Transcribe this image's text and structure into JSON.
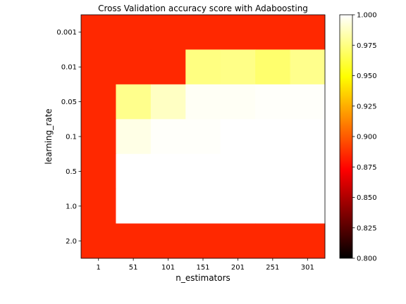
{
  "chart_data": {
    "type": "heatmap",
    "title": "Cross Validation accuracy score with Adaboosting",
    "xlabel": "n_estimators",
    "ylabel": "learning_rate",
    "x_categories": [
      "1",
      "51",
      "101",
      "151",
      "201",
      "251",
      "301"
    ],
    "y_categories": [
      "0.001",
      "0.01",
      "0.05",
      "0.1",
      "0.5",
      "1.0",
      "2.0"
    ],
    "values": [
      [
        0.885,
        0.885,
        0.885,
        0.885,
        0.885,
        0.885,
        0.885
      ],
      [
        0.885,
        0.885,
        0.885,
        0.975,
        0.976,
        0.971,
        0.977
      ],
      [
        0.885,
        0.977,
        0.988,
        0.998,
        0.998,
        0.999,
        0.999
      ],
      [
        0.885,
        0.995,
        0.999,
        0.999,
        1.0,
        1.0,
        1.0
      ],
      [
        0.885,
        1.0,
        1.0,
        1.0,
        1.0,
        1.0,
        1.0
      ],
      [
        0.885,
        1.0,
        1.0,
        1.0,
        1.0,
        1.0,
        1.0
      ],
      [
        0.885,
        0.885,
        0.885,
        0.885,
        0.885,
        0.885,
        0.885
      ]
    ],
    "colormap": "hot",
    "colorbar": {
      "min": 0.8,
      "max": 1.0,
      "ticks": [
        "0.800",
        "0.825",
        "0.850",
        "0.875",
        "0.900",
        "0.925",
        "0.950",
        "0.975",
        "1.000"
      ]
    },
    "grid": false
  }
}
